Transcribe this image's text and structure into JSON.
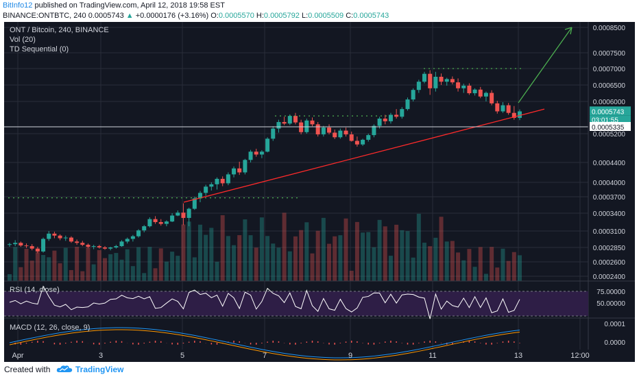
{
  "header": {
    "author": "BitInfo12",
    "published": "published on TradingView.com, April 12, 2018 19:58 EST",
    "symbol_line": "BINANCE:ONTBTC, 240",
    "last": "0.0005743",
    "change": "+0.0000176 (+3.16%)",
    "o_label": "O:",
    "o": "0.0005570",
    "h_label": "H:",
    "h": "0.0005792",
    "l_label": "L:",
    "l": "0.0005509",
    "c_label": "C:",
    "c": "0.0005743"
  },
  "legend": {
    "title": "ONT / Bitcoin, 240, BINANCE",
    "vol": "Vol (20)",
    "td": "TD Sequential (0)",
    "rsi": "RSI (14, close)",
    "macd": "MACD (12, 26, close, 9)"
  },
  "badges": {
    "price": "0.0005743",
    "countdown": "03:01:55",
    "level": "0.0005335"
  },
  "footer": {
    "created": "Created with",
    "brand": "TradingView"
  },
  "colors": {
    "bg": "#131722",
    "up": "#26a69a",
    "down": "#ef5350",
    "trend": "#ff2a2a",
    "arrow": "#4caf50",
    "grid": "#2a2e39",
    "rsi_band": "#2e1e46"
  },
  "chart_data": {
    "type": "candlestick",
    "symbol": "ONT / Bitcoin",
    "interval": "240",
    "exchange": "BINANCE",
    "y_axis_ticks": [
      0.00085,
      0.00075,
      0.0007,
      0.00065,
      0.0006,
      0.0005335,
      0.00052,
      0.00044,
      0.0004,
      0.00037,
      0.00034,
      0.00031,
      0.000285,
      0.00026,
      0.00024
    ],
    "x_axis_ticks": [
      "Apr",
      "3",
      "5",
      "7",
      "9",
      "11",
      "13",
      "12:00"
    ],
    "last_price": 0.0005743,
    "candles": [
      [
        0.000289,
        0.000292,
        0.000286,
        0.00029
      ],
      [
        0.00029,
        0.000296,
        0.000287,
        0.000292
      ],
      [
        0.000292,
        0.000294,
        0.000286,
        0.000288
      ],
      [
        0.000288,
        0.000291,
        0.000284,
        0.000287
      ],
      [
        0.000287,
        0.00029,
        0.00028,
        0.000283
      ],
      [
        0.000283,
        0.000286,
        0.000275,
        0.000278
      ],
      [
        0.000278,
        0.0003,
        0.000276,
        0.000298
      ],
      [
        0.000298,
        0.00031,
        0.000295,
        0.000306
      ],
      [
        0.000306,
        0.000309,
        0.000299,
        0.000303
      ],
      [
        0.000303,
        0.000305,
        0.000296,
        0.000299
      ],
      [
        0.000299,
        0.000303,
        0.000295,
        0.0003
      ],
      [
        0.0003,
        0.000302,
        0.000292,
        0.000294
      ],
      [
        0.000294,
        0.000297,
        0.000289,
        0.000292
      ],
      [
        0.000292,
        0.000295,
        0.000287,
        0.000289
      ],
      [
        0.000289,
        0.000291,
        0.000284,
        0.000286
      ],
      [
        0.000286,
        0.000289,
        0.000282,
        0.000287
      ],
      [
        0.000287,
        0.000289,
        0.000283,
        0.000285
      ],
      [
        0.000285,
        0.000287,
        0.000281,
        0.000283
      ],
      [
        0.000283,
        0.000286,
        0.00028,
        0.000285
      ],
      [
        0.000285,
        0.000289,
        0.000283,
        0.000287
      ],
      [
        0.000287,
        0.000296,
        0.000286,
        0.000294
      ],
      [
        0.000294,
        0.0003,
        0.000291,
        0.000298
      ],
      [
        0.000298,
        0.000304,
        0.000294,
        0.000302
      ],
      [
        0.000302,
        0.000313,
        0.0003,
        0.000311
      ],
      [
        0.000311,
        0.00032,
        0.000308,
        0.000318
      ],
      [
        0.000318,
        0.000333,
        0.000316,
        0.00033
      ],
      [
        0.00033,
        0.000335,
        0.000322,
        0.000325
      ],
      [
        0.000325,
        0.00033,
        0.000319,
        0.000322
      ],
      [
        0.000322,
        0.000328,
        0.000318,
        0.000326
      ],
      [
        0.000326,
        0.00034,
        0.000325,
        0.000336
      ],
      [
        0.000336,
        0.000345,
        0.000335,
        0.000341
      ],
      [
        0.000341,
        0.000358,
        0.00032,
        0.000332
      ],
      [
        0.000332,
        0.00035,
        0.000318,
        0.000348
      ],
      [
        0.000348,
        0.00037,
        0.000346,
        0.000367
      ],
      [
        0.000367,
        0.000382,
        0.00036,
        0.000378
      ],
      [
        0.000378,
        0.000395,
        0.000372,
        0.000391
      ],
      [
        0.000391,
        0.0004,
        0.000383,
        0.000396
      ],
      [
        0.000396,
        0.00041,
        0.000385,
        0.000407
      ],
      [
        0.000407,
        0.000412,
        0.000392,
        0.000398
      ],
      [
        0.000398,
        0.00042,
        0.000394,
        0.000416
      ],
      [
        0.000416,
        0.000432,
        0.00041,
        0.000428
      ],
      [
        0.000428,
        0.000442,
        0.000415,
        0.00042
      ],
      [
        0.00042,
        0.00045,
        0.000416,
        0.000447
      ],
      [
        0.000447,
        0.000475,
        0.00044,
        0.00047
      ],
      [
        0.00047,
        0.000478,
        0.000456,
        0.000462
      ],
      [
        0.000462,
        0.000474,
        0.000452,
        0.00047
      ],
      [
        0.00047,
        0.00051,
        0.000468,
        0.000506
      ],
      [
        0.000506,
        0.000535,
        0.0005,
        0.00053
      ],
      [
        0.00053,
        0.000552,
        0.000522,
        0.000546
      ],
      [
        0.000546,
        0.00056,
        0.000538,
        0.000542
      ],
      [
        0.000542,
        0.000566,
        0.000538,
        0.000562
      ],
      [
        0.000562,
        0.00057,
        0.00054,
        0.000545
      ],
      [
        0.000545,
        0.000552,
        0.000518,
        0.000523
      ],
      [
        0.000523,
        0.000555,
        0.00052,
        0.00055
      ],
      [
        0.00055,
        0.000558,
        0.000535,
        0.00054
      ],
      [
        0.00054,
        0.000546,
        0.000512,
        0.000518
      ],
      [
        0.000518,
        0.000536,
        0.000512,
        0.000532
      ],
      [
        0.000532,
        0.00054,
        0.000518,
        0.000522
      ],
      [
        0.000522,
        0.000528,
        0.000505,
        0.00051
      ],
      [
        0.00051,
        0.00053,
        0.000506,
        0.000526
      ],
      [
        0.000526,
        0.000532,
        0.000512,
        0.000518
      ],
      [
        0.000518,
        0.000524,
        0.000498,
        0.0005
      ],
      [
        0.0005,
        0.000512,
        0.000484,
        0.00049
      ],
      [
        0.00049,
        0.000506,
        0.000486,
        0.000503
      ],
      [
        0.000503,
        0.00052,
        0.000498,
        0.000516
      ],
      [
        0.000516,
        0.00054,
        0.00051,
        0.000536
      ],
      [
        0.000536,
        0.00056,
        0.00053,
        0.000555
      ],
      [
        0.000555,
        0.000565,
        0.00054,
        0.000548
      ],
      [
        0.000548,
        0.00057,
        0.000542,
        0.000565
      ],
      [
        0.000565,
        0.00058,
        0.000555,
        0.00056
      ],
      [
        0.00056,
        0.000585,
        0.000555,
        0.00058
      ],
      [
        0.00058,
        0.000612,
        0.000576,
        0.000606
      ],
      [
        0.000606,
        0.00064,
        0.0006,
        0.000635
      ],
      [
        0.000635,
        0.000666,
        0.000626,
        0.00066
      ],
      [
        0.00066,
        0.00069,
        0.000655,
        0.000684
      ],
      [
        0.000684,
        0.000695,
        0.00062,
        0.00064
      ],
      [
        0.00064,
        0.00069,
        0.00063,
        0.000675
      ],
      [
        0.000675,
        0.000685,
        0.00065,
        0.00066
      ],
      [
        0.00066,
        0.000672,
        0.000648,
        0.000668
      ],
      [
        0.000668,
        0.000676,
        0.000652,
        0.000658
      ],
      [
        0.000658,
        0.00067,
        0.00063,
        0.00064
      ],
      [
        0.00064,
        0.000654,
        0.000626,
        0.000648
      ],
      [
        0.000648,
        0.000655,
        0.00062,
        0.000625
      ],
      [
        0.000625,
        0.00064,
        0.000618,
        0.000636
      ],
      [
        0.000636,
        0.000644,
        0.00061,
        0.000615
      ],
      [
        0.000615,
        0.00063,
        0.0006,
        0.000626
      ],
      [
        0.000626,
        0.000634,
        0.00059,
        0.000595
      ],
      [
        0.000595,
        0.000602,
        0.000568,
        0.000574
      ],
      [
        0.000574,
        0.000598,
        0.00057,
        0.00059
      ],
      [
        0.00059,
        0.000596,
        0.000565,
        0.00057
      ],
      [
        0.00057,
        0.000588,
        0.000552,
        0.000557
      ],
      [
        0.000557,
        0.000579,
        0.000551,
        0.000574
      ]
    ],
    "trendline": [
      [
        0.00036,
        0.00058
      ]
    ],
    "td_counts": [],
    "rsi": {
      "label": "RSI (14, close)",
      "ticks": [
        75,
        50
      ],
      "band": [
        30,
        70
      ]
    },
    "macd": {
      "label": "MACD (12, 26, close, 9)",
      "ticks": [
        0.0001,
        0.0
      ]
    }
  }
}
